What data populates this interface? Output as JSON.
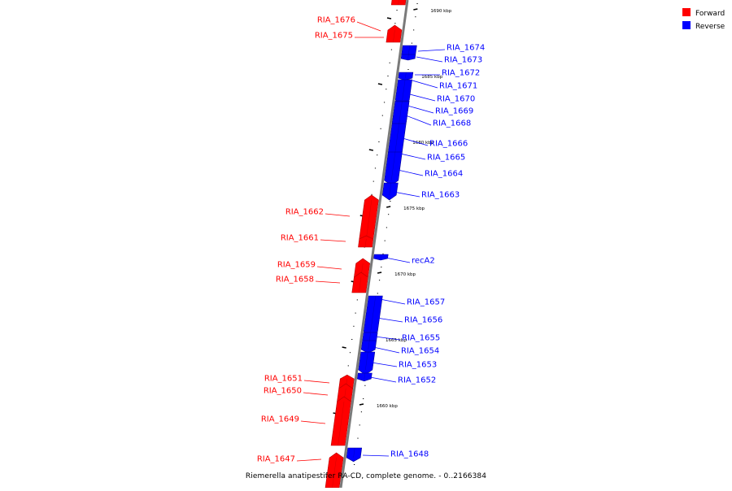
{
  "legend": {
    "forward_label": "Forward",
    "reverse_label": "Reverse",
    "forward_color": "#ff0000",
    "reverse_color": "#0000ff"
  },
  "caption": "Riemerella anatipestifer RA-CD, complete genome. - 0..2166384",
  "colors": {
    "axis": "#7a7a7a",
    "tick": "#000000",
    "forward": "#ff0000",
    "reverse": "#0000ff"
  },
  "ticks": [
    {
      "position": 1690,
      "label": "1690 kbp"
    },
    {
      "position": 1685,
      "label": "1685 kbp"
    },
    {
      "position": 1680,
      "label": "1680 kbp"
    },
    {
      "position": 1675,
      "label": "1675 kbp"
    },
    {
      "position": 1670,
      "label": "1670 kbp"
    },
    {
      "position": 1665,
      "label": "1665 kbp"
    },
    {
      "position": 1660,
      "label": "1660 kbp"
    }
  ],
  "genes": [
    {
      "name": "RIA_1676",
      "strand": "forward"
    },
    {
      "name": "RIA_1675",
      "strand": "forward"
    },
    {
      "name": "RIA_1674",
      "strand": "reverse"
    },
    {
      "name": "RIA_1673",
      "strand": "reverse"
    },
    {
      "name": "RIA_1672",
      "strand": "reverse"
    },
    {
      "name": "RIA_1671",
      "strand": "reverse"
    },
    {
      "name": "RIA_1670",
      "strand": "reverse"
    },
    {
      "name": "RIA_1669",
      "strand": "reverse"
    },
    {
      "name": "RIA_1668",
      "strand": "reverse"
    },
    {
      "name": "RIA_1666",
      "strand": "reverse"
    },
    {
      "name": "RIA_1665",
      "strand": "reverse"
    },
    {
      "name": "RIA_1664",
      "strand": "reverse"
    },
    {
      "name": "RIA_1663",
      "strand": "reverse"
    },
    {
      "name": "RIA_1662",
      "strand": "forward"
    },
    {
      "name": "RIA_1661",
      "strand": "forward"
    },
    {
      "name": "recA2",
      "strand": "reverse"
    },
    {
      "name": "RIA_1659",
      "strand": "forward"
    },
    {
      "name": "RIA_1658",
      "strand": "forward"
    },
    {
      "name": "RIA_1657",
      "strand": "reverse"
    },
    {
      "name": "RIA_1656",
      "strand": "reverse"
    },
    {
      "name": "RIA_1655",
      "strand": "reverse"
    },
    {
      "name": "RIA_1654",
      "strand": "reverse"
    },
    {
      "name": "RIA_1653",
      "strand": "reverse"
    },
    {
      "name": "RIA_1652",
      "strand": "reverse"
    },
    {
      "name": "RIA_1651",
      "strand": "forward"
    },
    {
      "name": "RIA_1650",
      "strand": "forward"
    },
    {
      "name": "RIA_1649",
      "strand": "forward"
    },
    {
      "name": "RIA_1648",
      "strand": "reverse"
    },
    {
      "name": "RIA_1647",
      "strand": "forward"
    }
  ]
}
